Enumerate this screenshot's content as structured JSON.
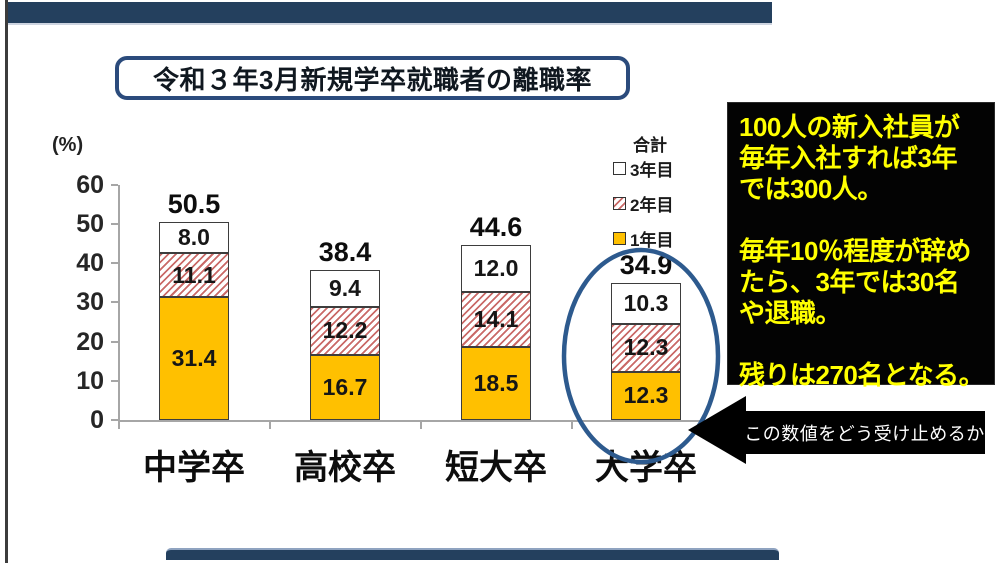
{
  "slide": {
    "title": "令和３年3月新規学卒就職者の離職率"
  },
  "chart_data": {
    "type": "bar",
    "stacked": true,
    "title": "令和３年3月新規学卒就職者の離職率",
    "xlabel": "",
    "ylabel": "(%)",
    "ylim": [
      0,
      60
    ],
    "yticks": [
      0,
      10,
      20,
      30,
      40,
      50,
      60
    ],
    "grid": false,
    "legend_position": "upper-right",
    "categories": [
      "中学卒",
      "高校卒",
      "短大卒",
      "大学卒"
    ],
    "series": [
      {
        "name": "1年目",
        "pattern": "solid",
        "color": "#FFC000",
        "values": [
          31.4,
          16.7,
          18.5,
          12.3
        ]
      },
      {
        "name": "2年目",
        "pattern": "hatch",
        "color": "#C0504D",
        "values": [
          11.1,
          12.2,
          14.1,
          12.3
        ]
      },
      {
        "name": "3年目",
        "pattern": "solid",
        "color": "#FFFFFF",
        "values": [
          8.0,
          9.4,
          12.0,
          10.3
        ]
      }
    ],
    "totals": [
      50.5,
      38.4,
      44.6,
      34.9
    ],
    "highlighted_category": "大学卒"
  },
  "legend": {
    "header": "合計",
    "items": [
      {
        "label": "3年目",
        "pattern": "solid",
        "color": "#FFFFFF"
      },
      {
        "label": "2年目",
        "pattern": "hatch",
        "color": "#C0504D"
      },
      {
        "label": "1年目",
        "pattern": "solid",
        "color": "#FFC000"
      }
    ]
  },
  "commentary_box": {
    "bg_color": "#000000",
    "text_color": "#FFFF00",
    "paragraphs": [
      [
        "100人の新入社員が",
        "毎年入社すれば3年",
        "では300人。"
      ],
      [
        "毎年10％程度が辞め",
        "たら、3年では30名",
        "や退職。"
      ],
      [
        "残りは270名となる。"
      ]
    ]
  },
  "arrow_callout": {
    "label": "この数値をどう受け止めるか"
  },
  "colors": {
    "navy_bar": "#24405e",
    "title_border": "#2b4b7c",
    "highlight_ellipse": "#2d5a8e",
    "bar_orange": "#FFC000",
    "hatch_red": "#C0504D",
    "axis_gray": "#a6a6a6"
  }
}
